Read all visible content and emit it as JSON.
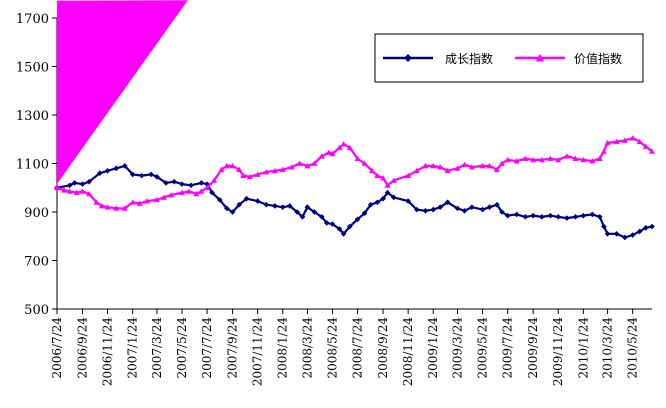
{
  "chart_data": {
    "type": "line",
    "ylim": [
      500,
      1700
    ],
    "yticks": [
      500,
      700,
      900,
      1100,
      1300,
      1500,
      1700
    ],
    "xlim": [
      "2006-07-24",
      "2010-07-10"
    ],
    "x_tick_labels": [
      "2006/7/24",
      "2006/9/24",
      "2006/11/24",
      "2007/1/24",
      "2007/3/24",
      "2007/5/24",
      "2007/7/24",
      "2007/9/24",
      "2007/11/24",
      "2008/1/24",
      "2008/3/24",
      "2008/5/24",
      "2008/7/24",
      "2008/9/24",
      "2008/11/24",
      "2009/1/24",
      "2009/3/24",
      "2009/5/24",
      "2009/7/24",
      "2009/9/24",
      "2009/11/24",
      "2010/1/24",
      "2010/3/24",
      "2010/5/24"
    ],
    "x_tick_dates": [
      "2006-07-24",
      "2006-09-24",
      "2006-11-24",
      "2007-01-24",
      "2007-03-24",
      "2007-05-24",
      "2007-07-24",
      "2007-09-24",
      "2007-11-24",
      "2008-01-24",
      "2008-03-24",
      "2008-05-24",
      "2008-07-24",
      "2008-09-24",
      "2008-11-24",
      "2009-01-24",
      "2009-03-24",
      "2009-05-24",
      "2009-07-24",
      "2009-09-24",
      "2009-11-24",
      "2010-01-24",
      "2010-03-24",
      "2010-05-24"
    ],
    "grid": false,
    "legend_position": "top-right",
    "series": [
      {
        "name": "成长指数",
        "color": "#000080",
        "marker": "diamond",
        "points": [
          [
            "2006-07-24",
            1000
          ],
          [
            "2006-08-24",
            1010
          ],
          [
            "2006-09-05",
            1020
          ],
          [
            "2006-09-24",
            1015
          ],
          [
            "2006-10-10",
            1025
          ],
          [
            "2006-11-05",
            1060
          ],
          [
            "2006-11-24",
            1070
          ],
          [
            "2006-12-15",
            1080
          ],
          [
            "2007-01-05",
            1090
          ],
          [
            "2007-01-24",
            1055
          ],
          [
            "2007-02-15",
            1050
          ],
          [
            "2007-03-10",
            1055
          ],
          [
            "2007-03-24",
            1045
          ],
          [
            "2007-04-15",
            1020
          ],
          [
            "2007-05-05",
            1025
          ],
          [
            "2007-05-24",
            1015
          ],
          [
            "2007-06-15",
            1010
          ],
          [
            "2007-07-10",
            1020
          ],
          [
            "2007-07-24",
            1015
          ],
          [
            "2007-08-05",
            980
          ],
          [
            "2007-08-24",
            950
          ],
          [
            "2007-09-10",
            915
          ],
          [
            "2007-09-24",
            900
          ],
          [
            "2007-10-10",
            930
          ],
          [
            "2007-10-28",
            955
          ],
          [
            "2007-11-24",
            945
          ],
          [
            "2007-12-15",
            930
          ],
          [
            "2008-01-05",
            925
          ],
          [
            "2008-01-24",
            920
          ],
          [
            "2008-02-10",
            925
          ],
          [
            "2008-02-28",
            900
          ],
          [
            "2008-03-12",
            880
          ],
          [
            "2008-03-24",
            920
          ],
          [
            "2008-04-10",
            900
          ],
          [
            "2008-04-28",
            880
          ],
          [
            "2008-05-10",
            855
          ],
          [
            "2008-05-24",
            850
          ],
          [
            "2008-06-10",
            830
          ],
          [
            "2008-06-20",
            810
          ],
          [
            "2008-07-05",
            840
          ],
          [
            "2008-07-24",
            870
          ],
          [
            "2008-08-10",
            895
          ],
          [
            "2008-08-25",
            930
          ],
          [
            "2008-09-10",
            940
          ],
          [
            "2008-09-24",
            955
          ],
          [
            "2008-10-05",
            980
          ],
          [
            "2008-10-20",
            960
          ],
          [
            "2008-11-24",
            945
          ],
          [
            "2008-12-15",
            910
          ],
          [
            "2009-01-05",
            905
          ],
          [
            "2009-01-24",
            910
          ],
          [
            "2009-02-10",
            920
          ],
          [
            "2009-02-28",
            940
          ],
          [
            "2009-03-24",
            915
          ],
          [
            "2009-04-10",
            905
          ],
          [
            "2009-04-28",
            920
          ],
          [
            "2009-05-24",
            910
          ],
          [
            "2009-06-10",
            920
          ],
          [
            "2009-06-28",
            930
          ],
          [
            "2009-07-10",
            900
          ],
          [
            "2009-07-24",
            885
          ],
          [
            "2009-08-15",
            890
          ],
          [
            "2009-09-05",
            880
          ],
          [
            "2009-09-24",
            885
          ],
          [
            "2009-10-15",
            880
          ],
          [
            "2009-11-05",
            885
          ],
          [
            "2009-11-24",
            880
          ],
          [
            "2009-12-15",
            875
          ],
          [
            "2010-01-05",
            880
          ],
          [
            "2010-01-24",
            885
          ],
          [
            "2010-02-15",
            890
          ],
          [
            "2010-03-05",
            880
          ],
          [
            "2010-03-15",
            840
          ],
          [
            "2010-03-24",
            810
          ],
          [
            "2010-04-15",
            810
          ],
          [
            "2010-05-05",
            795
          ],
          [
            "2010-05-24",
            805
          ],
          [
            "2010-06-10",
            820
          ],
          [
            "2010-06-25",
            835
          ],
          [
            "2010-07-10",
            840
          ]
        ]
      },
      {
        "name": "价值指数",
        "color": "#ff00ff",
        "marker": "triangle",
        "points": [
          [
            "2006-07-24",
            1000
          ],
          [
            "2006-08-10",
            990
          ],
          [
            "2006-08-24",
            985
          ],
          [
            "2006-09-10",
            980
          ],
          [
            "2006-09-24",
            985
          ],
          [
            "2006-10-10",
            975
          ],
          [
            "2006-10-28",
            940
          ],
          [
            "2006-11-10",
            925
          ],
          [
            "2006-11-24",
            920
          ],
          [
            "2006-12-15",
            915
          ],
          [
            "2007-01-05",
            915
          ],
          [
            "2007-01-24",
            940
          ],
          [
            "2007-02-10",
            935
          ],
          [
            "2007-02-28",
            945
          ],
          [
            "2007-03-24",
            950
          ],
          [
            "2007-04-10",
            960
          ],
          [
            "2007-04-28",
            970
          ],
          [
            "2007-05-24",
            980
          ],
          [
            "2007-06-10",
            985
          ],
          [
            "2007-06-28",
            975
          ],
          [
            "2007-07-10",
            985
          ],
          [
            "2007-07-24",
            1000
          ],
          [
            "2007-08-10",
            1030
          ],
          [
            "2007-08-28",
            1075
          ],
          [
            "2007-09-10",
            1090
          ],
          [
            "2007-09-24",
            1090
          ],
          [
            "2007-10-10",
            1075
          ],
          [
            "2007-10-20",
            1050
          ],
          [
            "2007-11-05",
            1045
          ],
          [
            "2007-11-24",
            1055
          ],
          [
            "2007-12-15",
            1065
          ],
          [
            "2008-01-05",
            1070
          ],
          [
            "2008-01-24",
            1075
          ],
          [
            "2008-02-15",
            1085
          ],
          [
            "2008-03-05",
            1100
          ],
          [
            "2008-03-24",
            1090
          ],
          [
            "2008-04-10",
            1100
          ],
          [
            "2008-04-28",
            1130
          ],
          [
            "2008-05-15",
            1145
          ],
          [
            "2008-05-24",
            1140
          ],
          [
            "2008-06-10",
            1165
          ],
          [
            "2008-06-20",
            1180
          ],
          [
            "2008-07-05",
            1165
          ],
          [
            "2008-07-24",
            1120
          ],
          [
            "2008-08-10",
            1100
          ],
          [
            "2008-08-28",
            1070
          ],
          [
            "2008-09-10",
            1050
          ],
          [
            "2008-09-24",
            1040
          ],
          [
            "2008-10-05",
            1010
          ],
          [
            "2008-10-20",
            1030
          ],
          [
            "2008-11-24",
            1050
          ],
          [
            "2008-12-15",
            1070
          ],
          [
            "2009-01-05",
            1090
          ],
          [
            "2009-01-24",
            1090
          ],
          [
            "2009-02-10",
            1085
          ],
          [
            "2009-02-28",
            1070
          ],
          [
            "2009-03-24",
            1080
          ],
          [
            "2009-04-10",
            1095
          ],
          [
            "2009-04-28",
            1085
          ],
          [
            "2009-05-24",
            1090
          ],
          [
            "2009-06-10",
            1090
          ],
          [
            "2009-06-28",
            1075
          ],
          [
            "2009-07-10",
            1100
          ],
          [
            "2009-07-24",
            1115
          ],
          [
            "2009-08-15",
            1110
          ],
          [
            "2009-09-05",
            1120
          ],
          [
            "2009-09-24",
            1115
          ],
          [
            "2009-10-15",
            1115
          ],
          [
            "2009-11-05",
            1120
          ],
          [
            "2009-11-24",
            1115
          ],
          [
            "2009-12-15",
            1130
          ],
          [
            "2010-01-05",
            1120
          ],
          [
            "2010-01-24",
            1115
          ],
          [
            "2010-02-15",
            1110
          ],
          [
            "2010-03-05",
            1120
          ],
          [
            "2010-03-15",
            1150
          ],
          [
            "2010-03-24",
            1185
          ],
          [
            "2010-04-15",
            1190
          ],
          [
            "2010-05-05",
            1195
          ],
          [
            "2010-05-24",
            1205
          ],
          [
            "2010-06-10",
            1190
          ],
          [
            "2010-06-25",
            1170
          ],
          [
            "2010-07-10",
            1150
          ]
        ]
      }
    ]
  }
}
